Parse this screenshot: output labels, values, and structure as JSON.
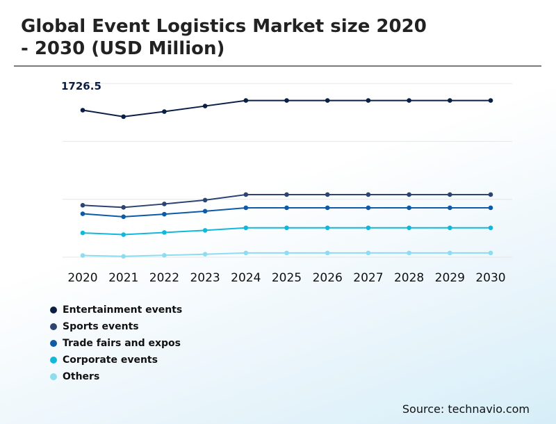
{
  "title_line1": "Global Event Logistics Market size 2020",
  "title_line2": "- 2030 (USD Million)",
  "source": "Source: technavio.com",
  "annotation": "1726.5",
  "chart_data": {
    "type": "line",
    "title": "Global Event Logistics Market size 2020 - 2030 (USD Million)",
    "xlabel": "",
    "ylabel": "",
    "categories": [
      "2020",
      "2021",
      "2022",
      "2023",
      "2024",
      "2025",
      "2026",
      "2027",
      "2028",
      "2029",
      "2030"
    ],
    "ylim": [
      0,
      2040
    ],
    "grid": true,
    "legend_position": "bottom-left",
    "annotations": [
      {
        "series": "Entertainment events",
        "year": "2020",
        "text": "1726.5"
      }
    ],
    "series": [
      {
        "name": "Entertainment events",
        "color": "#0b1f45",
        "values": [
          1726.5,
          1650,
          1710,
          1775,
          1840,
          1840,
          1840,
          1840,
          1840,
          1840,
          1840
        ]
      },
      {
        "name": "Sports events",
        "color": "#2b4472",
        "values": [
          610,
          585,
          625,
          670,
          735,
          735,
          735,
          735,
          735,
          735,
          735
        ]
      },
      {
        "name": "Trade fairs and expos",
        "color": "#0d5aa7",
        "values": [
          510,
          475,
          505,
          540,
          580,
          580,
          580,
          580,
          580,
          580,
          580
        ]
      },
      {
        "name": "Corporate events",
        "color": "#12b8dc",
        "values": [
          285,
          265,
          290,
          315,
          345,
          345,
          345,
          345,
          345,
          345,
          345
        ]
      },
      {
        "name": "Others",
        "color": "#8ddcf0",
        "values": [
          20,
          10,
          22,
          35,
          50,
          50,
          50,
          50,
          50,
          50,
          50
        ]
      }
    ]
  }
}
